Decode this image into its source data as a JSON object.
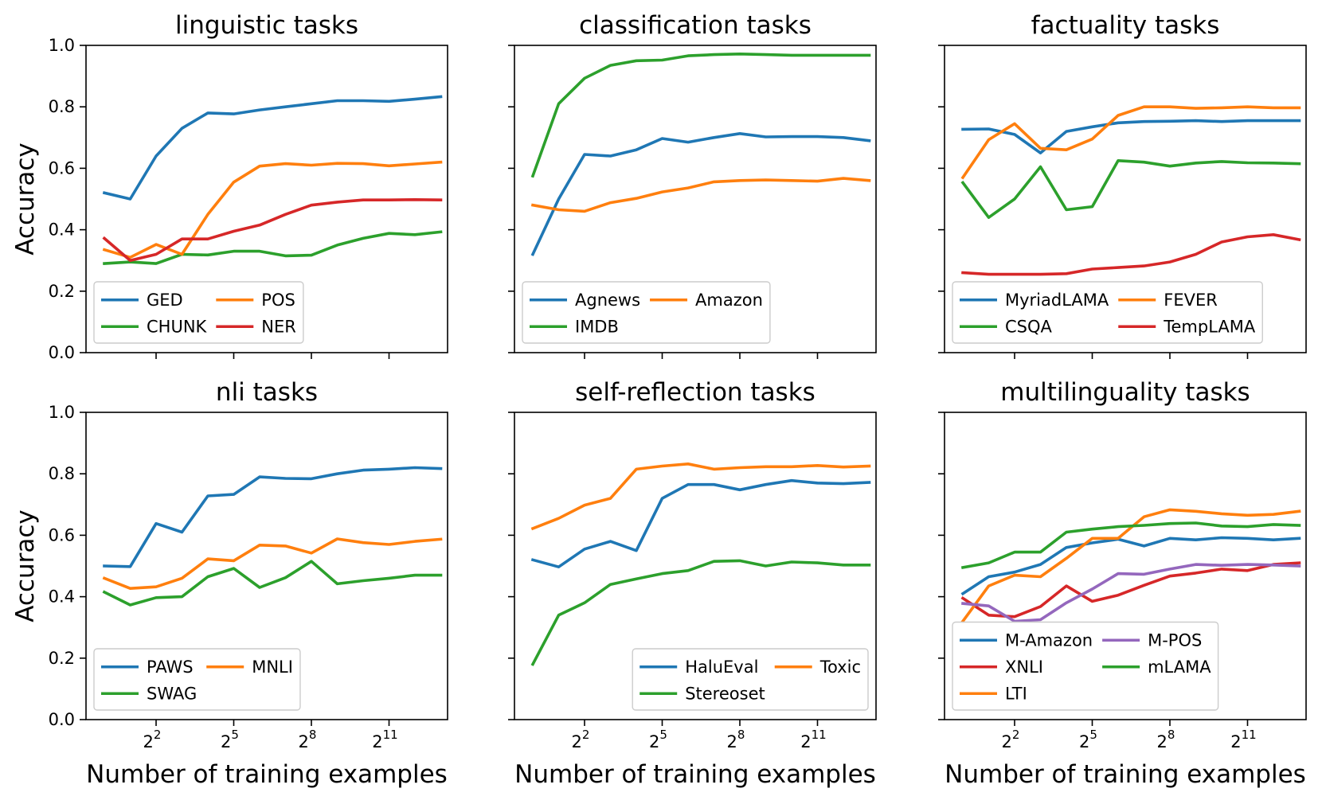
{
  "chart_data": [
    {
      "type": "line",
      "title": "linguistic tasks",
      "xlabel": "",
      "ylabel": "Accuracy",
      "x_scale": "log2",
      "x_exponents": [
        0,
        1,
        2,
        3,
        4,
        5,
        6,
        7,
        8,
        9,
        10,
        11,
        12,
        13
      ],
      "xticks": [
        {
          "base": "2",
          "exp": "2"
        },
        {
          "base": "2",
          "exp": "5"
        },
        {
          "base": "2",
          "exp": "8"
        },
        {
          "base": "2",
          "exp": "11"
        }
      ],
      "yticks": [
        "0.0",
        "0.2",
        "0.4",
        "0.6",
        "0.8",
        "1.0"
      ],
      "ylim": [
        0,
        1
      ],
      "legend_cols": 2,
      "legend_loc": "lower-left",
      "series": [
        {
          "name": "GED",
          "color": "#1f77b4",
          "values": [
            0.52,
            0.5,
            0.64,
            0.73,
            0.78,
            0.777,
            0.79,
            0.8,
            0.81,
            0.82,
            0.82,
            0.818,
            0.825,
            0.833
          ]
        },
        {
          "name": "CHUNK",
          "color": "#2ca02c",
          "values": [
            0.29,
            0.295,
            0.29,
            0.32,
            0.318,
            0.33,
            0.33,
            0.315,
            0.317,
            0.35,
            0.372,
            0.388,
            0.384,
            0.393
          ]
        },
        {
          "name": "POS",
          "color": "#ff7f0e",
          "values": [
            0.335,
            0.31,
            0.352,
            0.32,
            0.45,
            0.555,
            0.607,
            0.615,
            0.61,
            0.616,
            0.615,
            0.608,
            0.614,
            0.62
          ]
        },
        {
          "name": "NER",
          "color": "#d62728",
          "values": [
            0.372,
            0.3,
            0.32,
            0.37,
            0.37,
            0.395,
            0.415,
            0.45,
            0.48,
            0.49,
            0.497,
            0.497,
            0.498,
            0.497
          ]
        }
      ]
    },
    {
      "type": "line",
      "title": "classification tasks",
      "xlabel": "",
      "ylabel": "",
      "x_scale": "log2",
      "x_exponents": [
        0,
        1,
        2,
        3,
        4,
        5,
        6,
        7,
        8,
        9,
        10,
        11,
        12,
        13
      ],
      "xticks": [
        {
          "base": "2",
          "exp": "2"
        },
        {
          "base": "2",
          "exp": "5"
        },
        {
          "base": "2",
          "exp": "8"
        },
        {
          "base": "2",
          "exp": "11"
        }
      ],
      "yticks": [],
      "ylim": [
        0,
        1
      ],
      "legend_cols": 2,
      "legend_loc": "lower-left",
      "series": [
        {
          "name": "Agnews",
          "color": "#1f77b4",
          "values": [
            0.32,
            0.5,
            0.645,
            0.64,
            0.66,
            0.697,
            0.685,
            0.7,
            0.713,
            0.702,
            0.703,
            0.703,
            0.7,
            0.69
          ]
        },
        {
          "name": "IMDB",
          "color": "#2ca02c",
          "values": [
            0.575,
            0.81,
            0.893,
            0.935,
            0.95,
            0.952,
            0.966,
            0.97,
            0.972,
            0.97,
            0.968,
            0.968,
            0.968,
            0.968
          ]
        },
        {
          "name": "Amazon",
          "color": "#ff7f0e",
          "values": [
            0.48,
            0.465,
            0.46,
            0.488,
            0.502,
            0.523,
            0.536,
            0.556,
            0.56,
            0.562,
            0.56,
            0.558,
            0.567,
            0.56
          ]
        }
      ]
    },
    {
      "type": "line",
      "title": "factuality tasks",
      "xlabel": "",
      "ylabel": "",
      "x_scale": "log2",
      "x_exponents": [
        0,
        1,
        2,
        3,
        4,
        5,
        6,
        7,
        8,
        9,
        10,
        11,
        12,
        13
      ],
      "xticks": [
        {
          "base": "2",
          "exp": "2"
        },
        {
          "base": "2",
          "exp": "5"
        },
        {
          "base": "2",
          "exp": "8"
        },
        {
          "base": "2",
          "exp": "11"
        }
      ],
      "yticks": [],
      "ylim": [
        0,
        1
      ],
      "legend_cols": 2,
      "legend_loc": "lower-left",
      "series": [
        {
          "name": "MyriadLAMA",
          "color": "#1f77b4",
          "values": [
            0.727,
            0.728,
            0.71,
            0.65,
            0.72,
            0.735,
            0.748,
            0.752,
            0.753,
            0.755,
            0.752,
            0.755,
            0.755,
            0.755
          ]
        },
        {
          "name": "CSQA",
          "color": "#2ca02c",
          "values": [
            0.553,
            0.44,
            0.5,
            0.605,
            0.465,
            0.475,
            0.625,
            0.62,
            0.607,
            0.617,
            0.622,
            0.618,
            0.617,
            0.615
          ]
        },
        {
          "name": "FEVER",
          "color": "#ff7f0e",
          "values": [
            0.57,
            0.693,
            0.745,
            0.665,
            0.66,
            0.695,
            0.772,
            0.8,
            0.8,
            0.795,
            0.797,
            0.8,
            0.797,
            0.797
          ]
        },
        {
          "name": "TempLAMA",
          "color": "#d62728",
          "values": [
            0.26,
            0.255,
            0.255,
            0.255,
            0.257,
            0.272,
            0.277,
            0.282,
            0.295,
            0.32,
            0.36,
            0.377,
            0.384,
            0.368
          ]
        }
      ]
    },
    {
      "type": "line",
      "title": "nli tasks",
      "xlabel": "Number of training examples",
      "ylabel": "Accuracy",
      "x_scale": "log2",
      "x_exponents": [
        0,
        1,
        2,
        3,
        4,
        5,
        6,
        7,
        8,
        9,
        10,
        11,
        12,
        13
      ],
      "xticks": [
        {
          "base": "2",
          "exp": "2"
        },
        {
          "base": "2",
          "exp": "5"
        },
        {
          "base": "2",
          "exp": "8"
        },
        {
          "base": "2",
          "exp": "11"
        }
      ],
      "yticks": [
        "0.0",
        "0.2",
        "0.4",
        "0.6",
        "0.8",
        "1.0"
      ],
      "ylim": [
        0,
        1
      ],
      "legend_cols": 2,
      "legend_loc": "lower-left",
      "series": [
        {
          "name": "PAWS",
          "color": "#1f77b4",
          "values": [
            0.5,
            0.498,
            0.638,
            0.61,
            0.728,
            0.733,
            0.79,
            0.785,
            0.784,
            0.8,
            0.812,
            0.815,
            0.82,
            0.817
          ]
        },
        {
          "name": "SWAG",
          "color": "#2ca02c",
          "values": [
            0.415,
            0.373,
            0.397,
            0.4,
            0.465,
            0.492,
            0.43,
            0.462,
            0.515,
            0.442,
            0.452,
            0.46,
            0.47,
            0.47
          ]
        },
        {
          "name": "MNLI",
          "color": "#ff7f0e",
          "values": [
            0.46,
            0.427,
            0.432,
            0.46,
            0.523,
            0.517,
            0.568,
            0.565,
            0.542,
            0.588,
            0.576,
            0.57,
            0.58,
            0.587
          ]
        }
      ]
    },
    {
      "type": "line",
      "title": "self-reflection tasks",
      "xlabel": "Number of training examples",
      "ylabel": "",
      "x_scale": "log2",
      "x_exponents": [
        0,
        1,
        2,
        3,
        4,
        5,
        6,
        7,
        8,
        9,
        10,
        11,
        12,
        13
      ],
      "xticks": [
        {
          "base": "2",
          "exp": "2"
        },
        {
          "base": "2",
          "exp": "5"
        },
        {
          "base": "2",
          "exp": "8"
        },
        {
          "base": "2",
          "exp": "11"
        }
      ],
      "yticks": [],
      "ylim": [
        0,
        1
      ],
      "legend_cols": 2,
      "legend_loc": "lower-right",
      "series": [
        {
          "name": "HaluEval",
          "color": "#1f77b4",
          "values": [
            0.52,
            0.497,
            0.555,
            0.58,
            0.55,
            0.72,
            0.765,
            0.765,
            0.748,
            0.765,
            0.778,
            0.77,
            0.768,
            0.772
          ]
        },
        {
          "name": "Stereoset",
          "color": "#2ca02c",
          "values": [
            0.18,
            0.34,
            0.38,
            0.44,
            0.458,
            0.475,
            0.485,
            0.515,
            0.517,
            0.5,
            0.513,
            0.51,
            0.503,
            0.503
          ]
        },
        {
          "name": "Toxic",
          "color": "#ff7f0e",
          "values": [
            0.622,
            0.655,
            0.698,
            0.72,
            0.815,
            0.825,
            0.832,
            0.815,
            0.82,
            0.823,
            0.823,
            0.827,
            0.822,
            0.825
          ]
        }
      ]
    },
    {
      "type": "line",
      "title": "multilinguality tasks",
      "xlabel": "Number of training examples",
      "ylabel": "",
      "x_scale": "log2",
      "x_exponents": [
        0,
        1,
        2,
        3,
        4,
        5,
        6,
        7,
        8,
        9,
        10,
        11,
        12,
        13
      ],
      "xticks": [
        {
          "base": "2",
          "exp": "2"
        },
        {
          "base": "2",
          "exp": "5"
        },
        {
          "base": "2",
          "exp": "8"
        },
        {
          "base": "2",
          "exp": "11"
        }
      ],
      "yticks": [],
      "ylim": [
        0,
        1
      ],
      "legend_cols": 2,
      "legend_loc": "lower-left",
      "series": [
        {
          "name": "M-Amazon",
          "color": "#1f77b4",
          "values": [
            0.41,
            0.465,
            0.48,
            0.505,
            0.56,
            0.575,
            0.587,
            0.565,
            0.59,
            0.585,
            0.592,
            0.59,
            0.585,
            0.59
          ]
        },
        {
          "name": "XNLI",
          "color": "#d62728",
          "values": [
            0.395,
            0.34,
            0.335,
            0.368,
            0.435,
            0.385,
            0.405,
            0.437,
            0.467,
            0.477,
            0.49,
            0.485,
            0.505,
            0.51
          ]
        },
        {
          "name": "LTI",
          "color": "#ff7f0e",
          "values": [
            0.32,
            0.435,
            0.47,
            0.465,
            0.525,
            0.59,
            0.59,
            0.66,
            0.683,
            0.678,
            0.67,
            0.665,
            0.668,
            0.678
          ]
        },
        {
          "name": "M-POS",
          "color": "#9467bd",
          "values": [
            0.378,
            0.37,
            0.32,
            0.325,
            0.38,
            0.425,
            0.475,
            0.473,
            0.49,
            0.505,
            0.502,
            0.505,
            0.503,
            0.5
          ]
        },
        {
          "name": "mLAMA",
          "color": "#2ca02c",
          "values": [
            0.495,
            0.51,
            0.545,
            0.545,
            0.61,
            0.62,
            0.628,
            0.632,
            0.638,
            0.64,
            0.63,
            0.628,
            0.635,
            0.632
          ]
        }
      ]
    }
  ]
}
